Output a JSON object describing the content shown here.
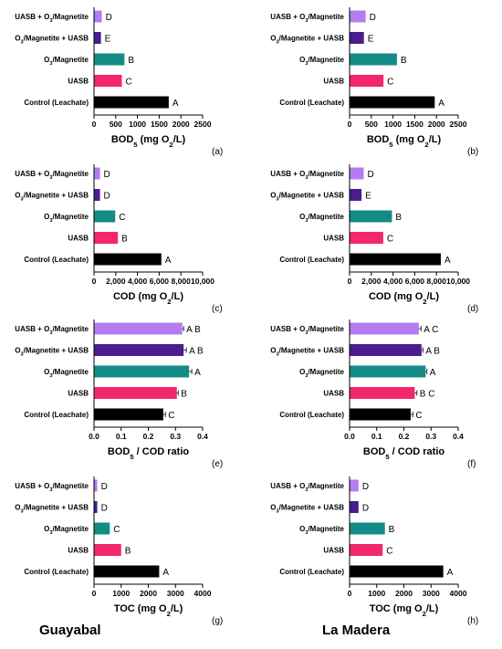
{
  "categories": [
    "UASB + O₃/Magnetite",
    "O₃/Magnetite + UASB",
    "O₃/Magnetite",
    "UASB",
    "Control (Leachate)"
  ],
  "colors": [
    "#b57bf0",
    "#4a1c8e",
    "#138c86",
    "#f2276e",
    "#000000"
  ],
  "sites": [
    "Guayabal",
    "La Madera"
  ],
  "chart_data": [
    {
      "type": "bar",
      "panel": "(a)",
      "site": "Guayabal",
      "xlabel": "BOD₅ (mg O₂/L)",
      "xlim": [
        0,
        2500
      ],
      "ticks": [
        0,
        500,
        1000,
        1500,
        2000,
        2500
      ],
      "tick_labels": [
        "0",
        "500",
        "1000",
        "1500",
        "2000",
        "2500"
      ],
      "values": [
        180,
        160,
        700,
        640,
        1720
      ],
      "groups": [
        "D",
        "E",
        "B",
        "C",
        "A"
      ],
      "errors": [
        0,
        0,
        0,
        0,
        0
      ]
    },
    {
      "type": "bar",
      "panel": "(b)",
      "site": "La Madera",
      "xlabel": "BOD₅ (mg O₂/L)",
      "xlim": [
        0,
        2500
      ],
      "ticks": [
        0,
        500,
        1000,
        1500,
        2000,
        2500
      ],
      "tick_labels": [
        "0",
        "500",
        "1000",
        "1500",
        "2000",
        "2500"
      ],
      "values": [
        370,
        330,
        1090,
        780,
        1960
      ],
      "groups": [
        "D",
        "E",
        "B",
        "C",
        "A"
      ],
      "errors": [
        0,
        0,
        0,
        0,
        0
      ]
    },
    {
      "type": "bar",
      "panel": "(c)",
      "site": "Guayabal",
      "xlabel": "COD (mg O₂/L)",
      "xlim": [
        0,
        10000
      ],
      "ticks": [
        0,
        2000,
        4000,
        6000,
        8000,
        10000
      ],
      "tick_labels": [
        "0",
        "2,000",
        "4,000",
        "6,000",
        "8,000",
        "10,000"
      ],
      "values": [
        550,
        550,
        1950,
        2200,
        6200
      ],
      "groups": [
        "D",
        "D",
        "C",
        "B",
        "A"
      ],
      "errors": [
        0,
        0,
        0,
        0,
        0
      ]
    },
    {
      "type": "bar",
      "panel": "(d)",
      "site": "La Madera",
      "xlabel": "COD (mg O₂/L)",
      "xlim": [
        0,
        10000
      ],
      "ticks": [
        0,
        2000,
        4000,
        6000,
        8000,
        10000
      ],
      "tick_labels": [
        "0",
        "2,000",
        "4,000",
        "6,000",
        "8,000",
        "10,000"
      ],
      "values": [
        1300,
        1100,
        3900,
        3100,
        8400
      ],
      "groups": [
        "D",
        "E",
        "B",
        "C",
        "A"
      ],
      "errors": [
        0,
        0,
        0,
        0,
        0
      ]
    },
    {
      "type": "bar",
      "panel": "(e)",
      "site": "Guayabal",
      "xlabel": "BOD₅ / COD ratio",
      "xlim": [
        0,
        0.4
      ],
      "ticks": [
        0,
        0.1,
        0.2,
        0.3,
        0.4
      ],
      "tick_labels": [
        "0.0",
        "0.1",
        "0.2",
        "0.3",
        "0.4"
      ],
      "values": [
        0.325,
        0.33,
        0.35,
        0.305,
        0.255
      ],
      "groups": [
        "A B",
        "A B",
        "A",
        "B",
        "C"
      ],
      "errors": [
        0.005,
        0.01,
        0.01,
        0.005,
        0.008
      ]
    },
    {
      "type": "bar",
      "panel": "(f)",
      "site": "La Madera",
      "xlabel": "BOD₅ / COD ratio",
      "xlim": [
        0,
        0.4
      ],
      "ticks": [
        0,
        0.1,
        0.2,
        0.3,
        0.4
      ],
      "tick_labels": [
        "0.0",
        "0.1",
        "0.2",
        "0.3",
        "0.4"
      ],
      "values": [
        0.255,
        0.265,
        0.28,
        0.24,
        0.225
      ],
      "groups": [
        "A C",
        "A B",
        "A",
        "B C",
        "C"
      ],
      "errors": [
        0.008,
        0.005,
        0.005,
        0.008,
        0.008
      ]
    },
    {
      "type": "bar",
      "panel": "(g)",
      "site": "Guayabal",
      "xlabel": "TOC (mg O₂/L)",
      "xlim": [
        0,
        4000
      ],
      "ticks": [
        0,
        1000,
        2000,
        3000,
        4000
      ],
      "tick_labels": [
        "0",
        "1000",
        "2000",
        "3000",
        "4000"
      ],
      "values": [
        120,
        120,
        580,
        1000,
        2400
      ],
      "groups": [
        "D",
        "D",
        "C",
        "B",
        "A"
      ],
      "errors": [
        0,
        0,
        0,
        0,
        0
      ]
    },
    {
      "type": "bar",
      "panel": "(h)",
      "site": "La Madera",
      "xlabel": "TOC (mg O₂/L)",
      "xlim": [
        0,
        4000
      ],
      "ticks": [
        0,
        1000,
        2000,
        3000,
        4000
      ],
      "tick_labels": [
        "0",
        "1000",
        "2000",
        "3000",
        "4000"
      ],
      "values": [
        330,
        330,
        1300,
        1220,
        3450
      ],
      "groups": [
        "D",
        "D",
        "B",
        "C",
        "A"
      ],
      "errors": [
        0,
        0,
        0,
        0,
        0
      ]
    }
  ]
}
